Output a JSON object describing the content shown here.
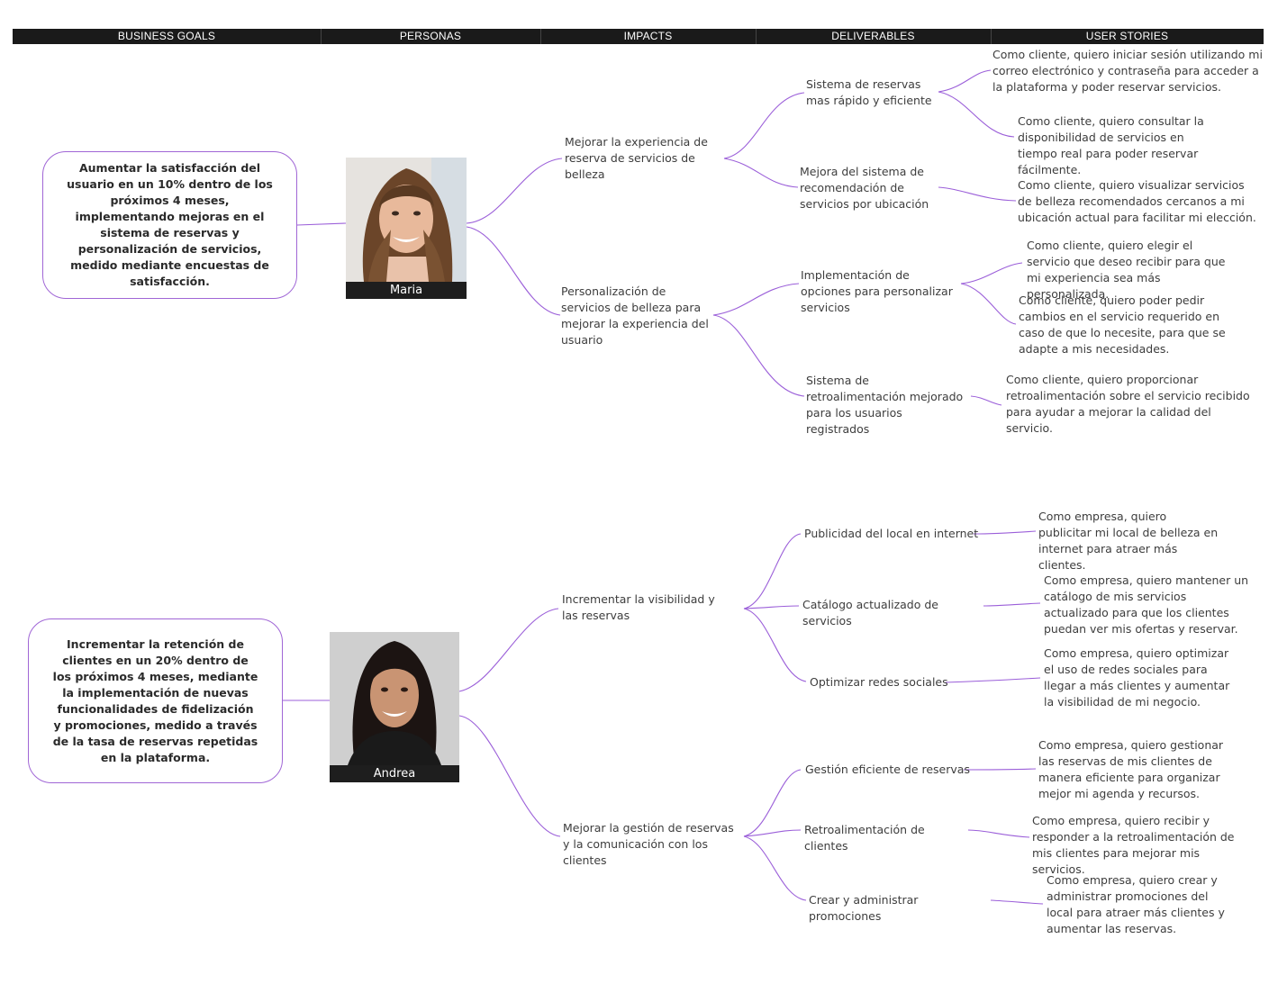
{
  "header": {
    "columns": [
      "BUSINESS GOALS",
      "PERSONAS",
      "IMPACTS",
      "DELIVERABLES",
      "USER STORIES"
    ]
  },
  "colors": {
    "connector": "#9b5fd9",
    "goal_border": "#a066d6",
    "header_bg": "#1a1a1a"
  },
  "groups": [
    {
      "goal": "Aumentar la satisfacción del usuario en un 10% dentro de los próximos 4 meses, implementando mejoras en el sistema de reservas y personalización de servicios, medido mediante encuestas de satisfacción.",
      "persona": {
        "name": "Maria",
        "photo_icon": "woman-portrait-photo"
      },
      "impacts": [
        {
          "text": "Mejorar la experiencia de reserva de servicios de belleza",
          "deliverables": [
            {
              "text": "Sistema de reservas mas rápido y eficiente",
              "stories": [
                "Como cliente, quiero iniciar sesión utilizando mi correo electrónico y contraseña para acceder a la plataforma y poder reservar servicios.",
                "Como cliente, quiero consultar la disponibilidad de servicios en tiempo real para poder reservar fácilmente."
              ]
            },
            {
              "text": "Mejora del sistema de recomendación de servicios por ubicación",
              "stories": [
                "Como cliente, quiero visualizar servicios de belleza recomendados cercanos a mi ubicación actual para facilitar mi elección."
              ]
            }
          ]
        },
        {
          "text": "Personalización de servicios de belleza para mejorar la experiencia del usuario",
          "deliverables": [
            {
              "text": "Implementación de opciones para personalizar servicios",
              "stories": [
                "Como cliente, quiero elegir el servicio que deseo recibir para que mi experiencia sea más personalizada.",
                "Como cliente, quiero poder pedir cambios en el servicio requerido en caso de que lo necesite, para que se adapte a mis necesidades."
              ]
            },
            {
              "text": "Sistema de retroalimentación mejorado para los usuarios registrados",
              "stories": [
                "Como cliente, quiero proporcionar retroalimentación sobre el servicio recibido para ayudar a mejorar la calidad del servicio."
              ]
            }
          ]
        }
      ]
    },
    {
      "goal": "Incrementar la retención de clientes en un 20% dentro de los próximos 4 meses, mediante la implementación de nuevas funcionalidades de fidelización y promociones, medido a través de la tasa de reservas repetidas en la plataforma.",
      "persona": {
        "name": "Andrea",
        "photo_icon": "woman-portrait-photo"
      },
      "impacts": [
        {
          "text": "Incrementar la visibilidad y las reservas",
          "deliverables": [
            {
              "text": "Publicidad del local en internet",
              "stories": [
                "Como empresa, quiero publicitar mi local de belleza en internet para atraer más clientes."
              ]
            },
            {
              "text": "Catálogo actualizado de servicios",
              "stories": [
                "Como empresa, quiero mantener un catálogo de mis servicios actualizado para que los clientes puedan ver mis ofertas y reservar."
              ]
            },
            {
              "text": "Optimizar redes sociales",
              "stories": [
                "Como empresa, quiero optimizar el uso de redes sociales para llegar a más clientes y aumentar la visibilidad de mi negocio."
              ]
            }
          ]
        },
        {
          "text": "Mejorar la gestión de reservas y la comunicación con los clientes",
          "deliverables": [
            {
              "text": "Gestión eficiente de reservas",
              "stories": [
                "Como empresa, quiero gestionar las reservas de mis clientes de manera eficiente para organizar mejor mi agenda y recursos."
              ]
            },
            {
              "text": "Retroalimentación de clientes",
              "stories": [
                "Como empresa, quiero recibir y responder a la retroalimentación de mis clientes para mejorar mis servicios."
              ]
            },
            {
              "text": "Crear y administrar promociones",
              "stories": [
                "Como empresa, quiero crear y administrar promociones del local para atraer más clientes y aumentar las reservas."
              ]
            }
          ]
        }
      ]
    }
  ]
}
